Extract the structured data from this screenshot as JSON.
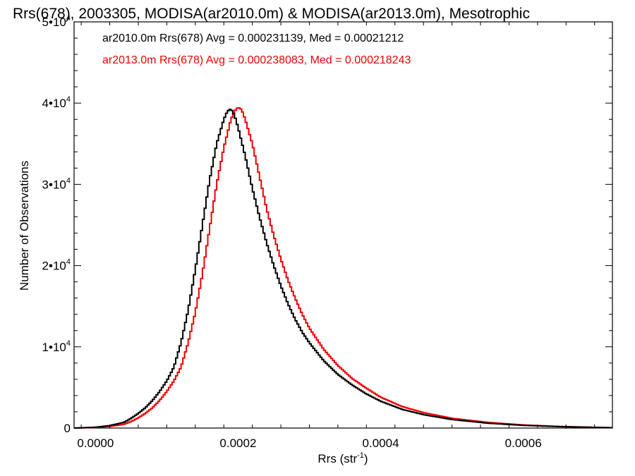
{
  "chart_data": {
    "type": "line",
    "title": "Rrs(678), 2003305, MODISA(ar2010.0m) & MODISA(ar2013.0m), Mesotrophic",
    "xlabel": "Rrs (str",
    "xlabel_sup": "-1",
    "xlabel_close": ")",
    "ylabel": "Number of Observations",
    "xlim": [
      -3e-05,
      0.000725
    ],
    "ylim": [
      0,
      50000
    ],
    "xticks": [
      {
        "value": 0.0,
        "label": "0.0000"
      },
      {
        "value": 0.0002,
        "label": "0.0002"
      },
      {
        "value": 0.0004,
        "label": "0.0004"
      },
      {
        "value": 0.0006,
        "label": "0.0006"
      }
    ],
    "yticks": [
      {
        "value": 0,
        "label": "0",
        "exp": ""
      },
      {
        "value": 10000,
        "label": "1•10",
        "exp": "4"
      },
      {
        "value": 20000,
        "label": "2•10",
        "exp": "4"
      },
      {
        "value": 30000,
        "label": "3•10",
        "exp": "4"
      },
      {
        "value": 40000,
        "label": "4•10",
        "exp": "4"
      },
      {
        "value": 50000,
        "label": "5•10",
        "exp": "4"
      }
    ],
    "step": true,
    "grid": false,
    "legend_position": "top-left",
    "series": [
      {
        "name": "ar2010.0m",
        "legend": "ar2010.0m Rrs(678) Avg = 0.000231139, Med = 0.00021212",
        "color": "#000000",
        "x": [
          -3e-05,
          0.0,
          2e-05,
          4e-05,
          5e-05,
          6e-05,
          7e-05,
          8e-05,
          9e-05,
          0.0001,
          0.00011,
          0.00012,
          0.00013,
          0.00014,
          0.00015,
          0.00016,
          0.00017,
          0.00018,
          0.000185,
          0.00019,
          0.000195,
          0.0002,
          0.00021,
          0.00022,
          0.00023,
          0.00024,
          0.00025,
          0.00026,
          0.00027,
          0.00028,
          0.00029,
          0.0003,
          0.00032,
          0.00034,
          0.00036,
          0.00038,
          0.0004,
          0.00043,
          0.00046,
          0.0005,
          0.00055,
          0.0006,
          0.00065,
          0.0007,
          0.000725
        ],
        "y": [
          0,
          100,
          300,
          700,
          1200,
          1800,
          2500,
          3400,
          4500,
          5800,
          7500,
          10500,
          14500,
          19500,
          25000,
          30500,
          35000,
          38000,
          39000,
          39300,
          38500,
          37000,
          33500,
          29500,
          26000,
          22800,
          20000,
          17500,
          15300,
          13400,
          11800,
          10500,
          8300,
          6600,
          5300,
          4200,
          3300,
          2300,
          1650,
          1050,
          600,
          330,
          180,
          80,
          40
        ]
      },
      {
        "name": "ar2013.0m",
        "legend": "ar2013.0m Rrs(678) Avg = 0.000238083, Med = 0.000218243",
        "color": "#ee0000",
        "x": [
          -3e-05,
          0.0,
          2e-05,
          4e-05,
          5e-05,
          6e-05,
          7e-05,
          8e-05,
          9e-05,
          0.0001,
          0.00011,
          0.00012,
          0.00013,
          0.00014,
          0.00015,
          0.00016,
          0.00017,
          0.00018,
          0.00019,
          0.000195,
          0.0002,
          0.000205,
          0.00021,
          0.00022,
          0.00023,
          0.00024,
          0.00025,
          0.00026,
          0.00027,
          0.00028,
          0.00029,
          0.0003,
          0.00032,
          0.00034,
          0.00036,
          0.00038,
          0.0004,
          0.00043,
          0.00046,
          0.0005,
          0.00055,
          0.0006,
          0.00065,
          0.0007,
          0.000725
        ],
        "y": [
          0,
          70,
          200,
          450,
          800,
          1250,
          1800,
          2500,
          3400,
          4500,
          5800,
          7500,
          10500,
          14200,
          19000,
          24500,
          30000,
          34500,
          38000,
          39000,
          39500,
          39200,
          38000,
          35000,
          31000,
          27000,
          23700,
          20800,
          18200,
          16000,
          14000,
          12300,
          9700,
          7700,
          6100,
          4900,
          3800,
          2650,
          1900,
          1200,
          700,
          380,
          200,
          90,
          45
        ]
      }
    ]
  }
}
